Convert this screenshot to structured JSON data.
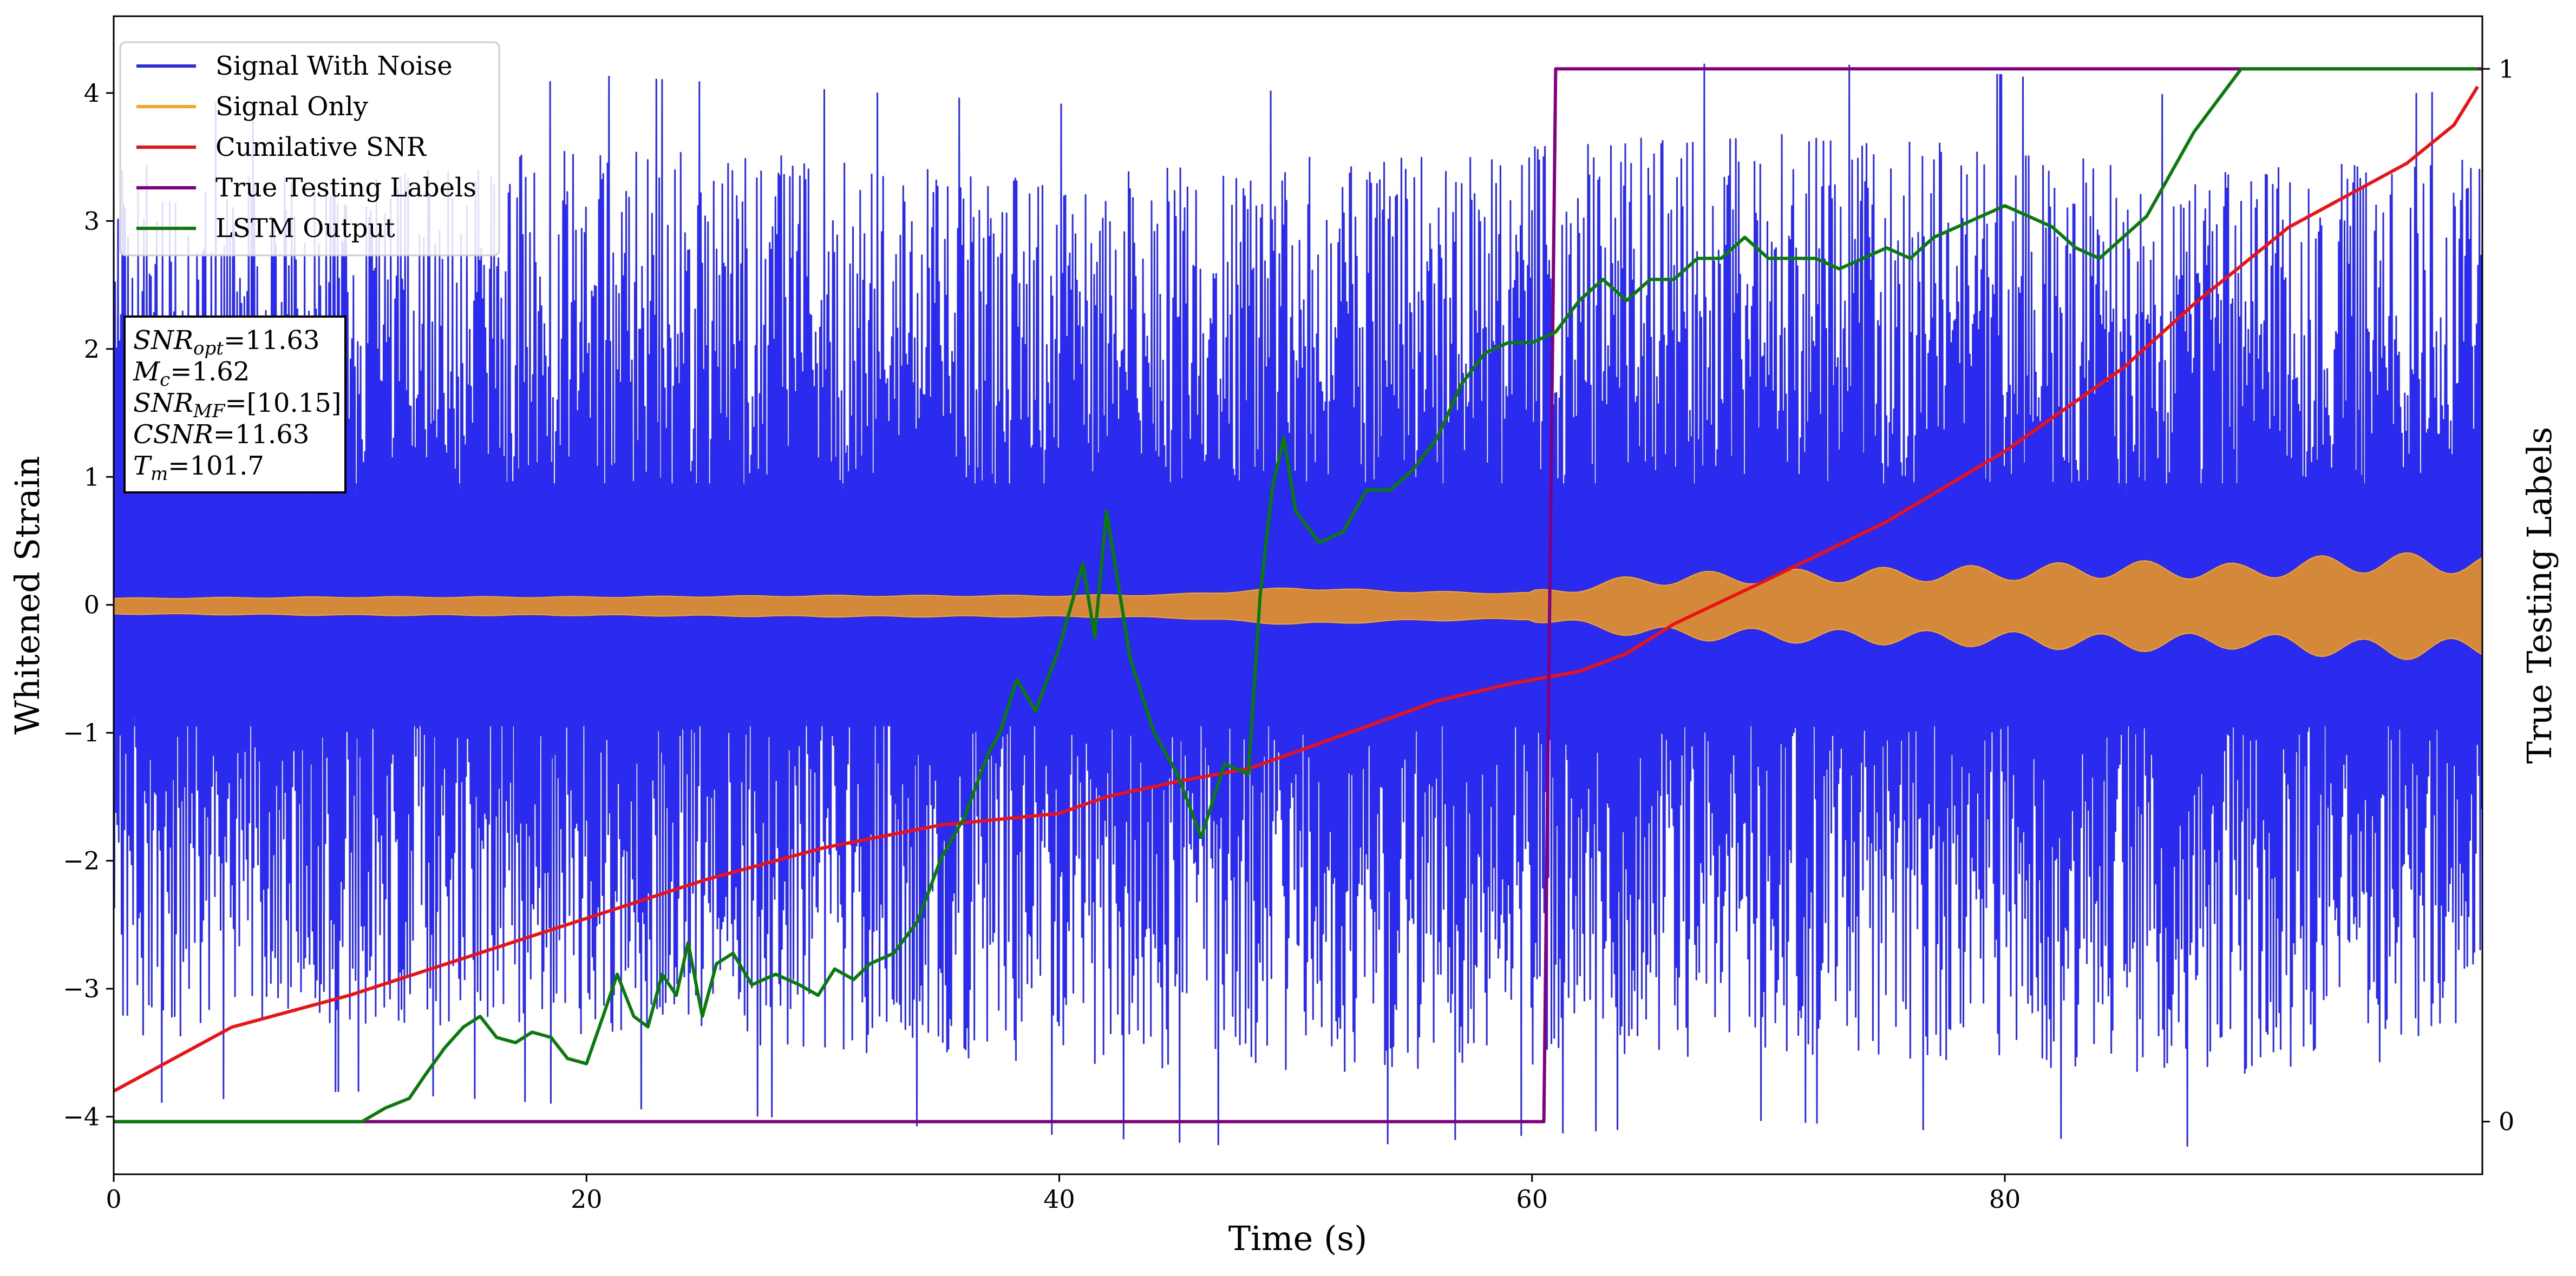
{
  "chart_data": {
    "type": "line",
    "xlabel": "Time (s)",
    "ylabel": "Whitened Strain",
    "ylabel_right": "True Testing Labels",
    "xlim": [
      0,
      100.2
    ],
    "ylim": [
      -4.45,
      4.6
    ],
    "ylim_right": [
      -0.05,
      1.05
    ],
    "x_ticks": [
      0,
      20,
      40,
      60,
      80
    ],
    "y_ticks": [
      -4,
      -3,
      -2,
      -1,
      0,
      1,
      2,
      3,
      4
    ],
    "y_ticks_right": [
      0,
      1
    ],
    "grid": false,
    "legend_position": "upper-left",
    "colors": {
      "signal_noise": "#2b2bf0",
      "signal_only": "#f5a623",
      "overlap": "#d4893a",
      "cumulative_snr": "#ee1111",
      "true_labels": "#800080",
      "lstm_output": "#0a7a0a"
    },
    "legend": [
      {
        "label": "Signal With Noise",
        "color": "#2b2bf0"
      },
      {
        "label": "Signal Only",
        "color": "#f5a623"
      },
      {
        "label": "Cumilative SNR",
        "color": "#ee1111"
      },
      {
        "label": "True Testing Labels",
        "color": "#800080"
      },
      {
        "label": "LSTM Output",
        "color": "#0a7a0a"
      }
    ],
    "info_box": [
      "SNR_opt=11.63",
      "M_c=1.62",
      "SNR_MF=[10.15]",
      "CSNR=11.63",
      "T_m=101.7"
    ],
    "series": [
      {
        "name": "Signal With Noise",
        "axis": "left",
        "envelope_x": [
          0,
          10,
          20,
          30,
          40,
          50,
          60,
          70,
          80,
          90,
          100
        ],
        "envelope_upper": [
          3.5,
          3.3,
          3.6,
          3.5,
          3.4,
          3.5,
          3.6,
          3.7,
          3.6,
          3.4,
          3.5
        ],
        "envelope_lower": [
          -3.4,
          -3.3,
          -3.4,
          -3.5,
          -3.6,
          -3.7,
          -3.6,
          -3.5,
          -3.6,
          -3.7,
          -3.5
        ]
      },
      {
        "name": "Signal Only",
        "axis": "left",
        "x": [
          0,
          10,
          20,
          30,
          40,
          45,
          50,
          55,
          60,
          65,
          70,
          80,
          85,
          90,
          95,
          100
        ],
        "amplitude": [
          0.05,
          0.06,
          0.06,
          0.07,
          0.07,
          0.08,
          0.13,
          0.1,
          0.09,
          0.2,
          0.22,
          0.25,
          0.28,
          0.26,
          0.33,
          0.32
        ]
      },
      {
        "name": "Cumilative SNR",
        "axis": "left",
        "x": [
          0,
          5,
          10,
          15,
          20,
          25,
          30,
          35,
          40,
          42,
          45,
          48,
          50,
          53,
          56,
          59,
          62,
          64,
          66,
          70,
          75,
          80,
          85,
          88,
          90,
          92,
          95,
          97,
          99,
          100
        ],
        "y": [
          -3.8,
          -3.3,
          -3.05,
          -2.75,
          -2.45,
          -2.15,
          -1.9,
          -1.72,
          -1.63,
          -1.5,
          -1.38,
          -1.28,
          -1.15,
          -0.95,
          -0.75,
          -0.62,
          -0.52,
          -0.38,
          -0.15,
          0.2,
          0.65,
          1.2,
          1.85,
          2.35,
          2.65,
          2.95,
          3.25,
          3.45,
          3.75,
          4.05
        ]
      },
      {
        "name": "True Testing Labels",
        "axis": "right",
        "x": [
          0,
          60.5,
          61.0,
          100.2
        ],
        "y": [
          0,
          0,
          1,
          1
        ]
      },
      {
        "name": "LSTM Output",
        "axis": "right",
        "x": [
          0,
          10.5,
          11.5,
          12.5,
          13.2,
          14,
          14.8,
          15.5,
          16.2,
          17,
          17.7,
          18.5,
          19.2,
          20,
          20.7,
          21.3,
          22,
          22.6,
          23.2,
          23.8,
          24.3,
          24.9,
          25.5,
          26.2,
          27,
          28,
          29,
          29.8,
          30.5,
          31.3,
          32,
          33,
          34,
          35,
          36,
          37,
          37.5,
          38.2,
          39,
          40,
          41,
          41.5,
          42,
          43,
          44,
          45,
          45.5,
          46,
          47,
          48,
          48.5,
          49,
          49.5,
          50,
          51,
          52,
          53,
          54,
          55,
          56,
          57,
          58,
          59,
          60,
          61,
          62,
          63,
          64,
          65,
          66,
          67,
          68,
          69,
          70,
          71,
          72,
          73,
          74,
          75,
          76,
          77,
          78,
          79,
          80,
          81,
          82,
          83,
          84,
          85,
          86,
          87,
          88,
          89,
          90,
          92,
          94,
          96,
          98,
          100
        ],
        "y": [
          0,
          0,
          0.013,
          0.022,
          0.045,
          0.07,
          0.09,
          0.1,
          0.08,
          0.075,
          0.085,
          0.08,
          0.06,
          0.055,
          0.1,
          0.14,
          0.1,
          0.09,
          0.14,
          0.12,
          0.17,
          0.1,
          0.15,
          0.16,
          0.13,
          0.14,
          0.13,
          0.12,
          0.145,
          0.135,
          0.15,
          0.16,
          0.19,
          0.25,
          0.29,
          0.35,
          0.37,
          0.42,
          0.39,
          0.45,
          0.53,
          0.46,
          0.58,
          0.44,
          0.37,
          0.33,
          0.3,
          0.27,
          0.34,
          0.33,
          0.5,
          0.6,
          0.65,
          0.58,
          0.55,
          0.56,
          0.6,
          0.6,
          0.62,
          0.65,
          0.7,
          0.73,
          0.74,
          0.74,
          0.75,
          0.78,
          0.8,
          0.78,
          0.8,
          0.8,
          0.82,
          0.82,
          0.84,
          0.82,
          0.82,
          0.82,
          0.81,
          0.82,
          0.83,
          0.82,
          0.84,
          0.85,
          0.86,
          0.87,
          0.86,
          0.85,
          0.83,
          0.82,
          0.84,
          0.86,
          0.9,
          0.94,
          0.97,
          1.0,
          1.0,
          1.0,
          1.0,
          1.0,
          1.0
        ]
      }
    ]
  }
}
